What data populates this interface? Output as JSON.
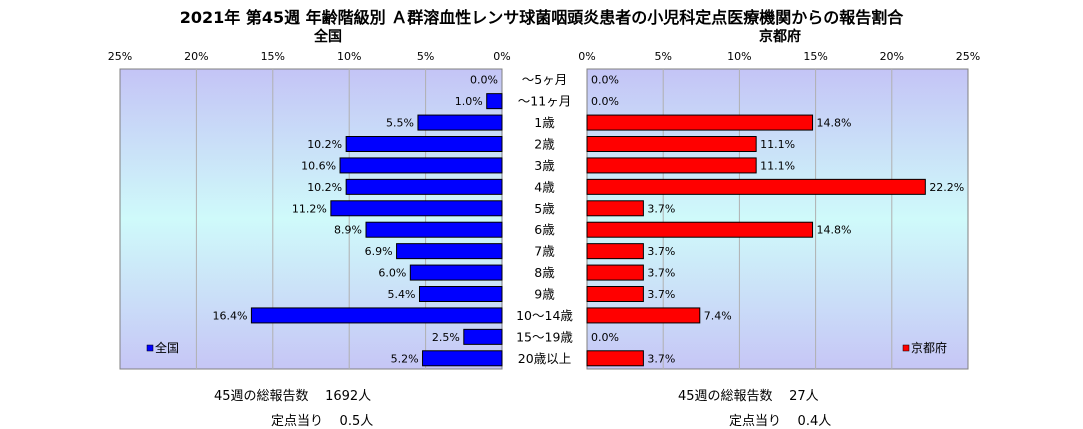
{
  "title": "2021年 第45週 年齢階級別 Ａ群溶血性レンサ球菌咽頭炎患者の小児科定点医療機関からの報告割合",
  "chart_data": {
    "type": "bar",
    "orientation": "horizontal",
    "layout": "population-pyramid",
    "categories": [
      "～5ヶ月",
      "～11ヶ月",
      "1歳",
      "2歳",
      "3歳",
      "4歳",
      "5歳",
      "6歳",
      "7歳",
      "8歳",
      "9歳",
      "10～14歳",
      "15～19歳",
      "20歳以上"
    ],
    "xlim": [
      0,
      25
    ],
    "ticks": [
      0,
      5,
      10,
      15,
      20,
      25
    ],
    "tick_labels": [
      "0%",
      "5%",
      "10%",
      "15%",
      "20%",
      "25%"
    ],
    "series": [
      {
        "name": "全国",
        "subtitle": "全国",
        "side": "left",
        "color": "#0000ff",
        "values": [
          0.0,
          1.0,
          5.5,
          10.2,
          10.6,
          10.2,
          11.2,
          8.9,
          6.9,
          6.0,
          5.4,
          16.4,
          2.5,
          5.2
        ],
        "value_labels": [
          "0.0%",
          "1.0%",
          "5.5%",
          "10.2%",
          "10.6%",
          "10.2%",
          "11.2%",
          "8.9%",
          "6.9%",
          "6.0%",
          "5.4%",
          "16.4%",
          "2.5%",
          "5.2%"
        ],
        "legend_placement": "bottom-left"
      },
      {
        "name": "京都府",
        "subtitle": "京都府",
        "side": "right",
        "color": "#ff0000",
        "values": [
          0.0,
          0.0,
          14.8,
          11.1,
          11.1,
          22.2,
          3.7,
          14.8,
          3.7,
          3.7,
          3.7,
          7.4,
          0.0,
          3.7
        ],
        "value_labels": [
          "0.0%",
          "0.0%",
          "14.8%",
          "11.1%",
          "11.1%",
          "22.2%",
          "3.7%",
          "14.8%",
          "3.7%",
          "3.7%",
          "3.7%",
          "7.4%",
          "0.0%",
          "3.7%"
        ],
        "legend_placement": "bottom-right"
      }
    ],
    "grid": true
  },
  "summary": {
    "national": {
      "total_label": "45週の総報告数",
      "total_value": "1692人",
      "per_label": "定点当り",
      "per_value": "0.5人"
    },
    "kyoto": {
      "total_label": "45週の総報告数",
      "total_value": "27人",
      "per_label": "定点当り",
      "per_value": "0.4人"
    }
  }
}
